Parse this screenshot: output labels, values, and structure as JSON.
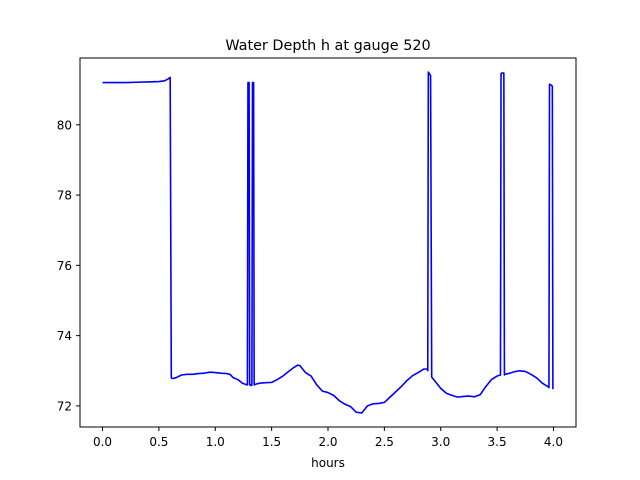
{
  "chart_data": {
    "type": "line",
    "title": "Water Depth h at gauge 520",
    "xlabel": "hours",
    "ylabel": "",
    "xlim": [
      -0.2,
      4.2
    ],
    "ylim": [
      71.4,
      81.9
    ],
    "grid": false,
    "xticks": [
      0.0,
      0.5,
      1.0,
      1.5,
      2.0,
      2.5,
      3.0,
      3.5,
      4.0
    ],
    "xtick_labels": [
      "0.0",
      "0.5",
      "1.0",
      "1.5",
      "2.0",
      "2.5",
      "3.0",
      "3.5",
      "4.0"
    ],
    "yticks": [
      72,
      74,
      76,
      78,
      80
    ],
    "ytick_labels": [
      "72",
      "74",
      "76",
      "78",
      "80"
    ],
    "series": [
      {
        "color": "#0000ff",
        "x": [
          0.0,
          0.1,
          0.2,
          0.3,
          0.4,
          0.5,
          0.55,
          0.58,
          0.6,
          0.61,
          0.62,
          0.65,
          0.7,
          0.75,
          0.8,
          0.85,
          0.9,
          0.95,
          1.0,
          1.05,
          1.1,
          1.13,
          1.16,
          1.2,
          1.24,
          1.28,
          1.285,
          1.29,
          1.3,
          1.305,
          1.31,
          1.32,
          1.325,
          1.33,
          1.34,
          1.345,
          1.35,
          1.36,
          1.4,
          1.45,
          1.5,
          1.55,
          1.6,
          1.65,
          1.7,
          1.73,
          1.75,
          1.8,
          1.85,
          1.9,
          1.95,
          2.0,
          2.05,
          2.1,
          2.15,
          2.2,
          2.25,
          2.3,
          2.35,
          2.4,
          2.45,
          2.5,
          2.55,
          2.6,
          2.65,
          2.7,
          2.75,
          2.8,
          2.85,
          2.88,
          2.885,
          2.89,
          2.91,
          2.92,
          2.93,
          2.95,
          3.0,
          3.05,
          3.1,
          3.15,
          3.2,
          3.25,
          3.3,
          3.35,
          3.4,
          3.45,
          3.5,
          3.53,
          3.535,
          3.54,
          3.56,
          3.565,
          3.57,
          3.6,
          3.65,
          3.7,
          3.75,
          3.8,
          3.85,
          3.9,
          3.95,
          3.96,
          3.965,
          3.97,
          3.99,
          3.995,
          4.0
        ],
        "y": [
          81.2,
          81.2,
          81.2,
          81.21,
          81.22,
          81.23,
          81.25,
          81.3,
          81.35,
          72.8,
          72.78,
          72.8,
          72.88,
          72.9,
          72.9,
          72.92,
          72.93,
          72.96,
          72.95,
          72.93,
          72.92,
          72.9,
          72.8,
          72.75,
          72.65,
          72.6,
          72.6,
          81.2,
          81.2,
          72.6,
          72.6,
          72.58,
          72.6,
          81.2,
          81.2,
          72.6,
          72.6,
          72.62,
          72.65,
          72.66,
          72.67,
          72.75,
          72.85,
          72.98,
          73.1,
          73.16,
          73.15,
          72.95,
          72.85,
          72.6,
          72.42,
          72.38,
          72.3,
          72.15,
          72.05,
          71.98,
          71.82,
          71.8,
          72.0,
          72.06,
          72.07,
          72.1,
          72.25,
          72.4,
          72.55,
          72.72,
          72.86,
          72.95,
          73.05,
          73.05,
          73.0,
          81.5,
          81.4,
          72.82,
          72.78,
          72.7,
          72.5,
          72.36,
          72.3,
          72.25,
          72.27,
          72.28,
          72.26,
          72.32,
          72.55,
          72.75,
          72.85,
          72.88,
          81.45,
          81.47,
          81.47,
          72.88,
          72.9,
          72.92,
          72.97,
          73.0,
          72.98,
          72.9,
          72.8,
          72.65,
          72.55,
          72.52,
          81.15,
          81.15,
          81.1,
          72.5,
          72.48
        ]
      }
    ]
  }
}
